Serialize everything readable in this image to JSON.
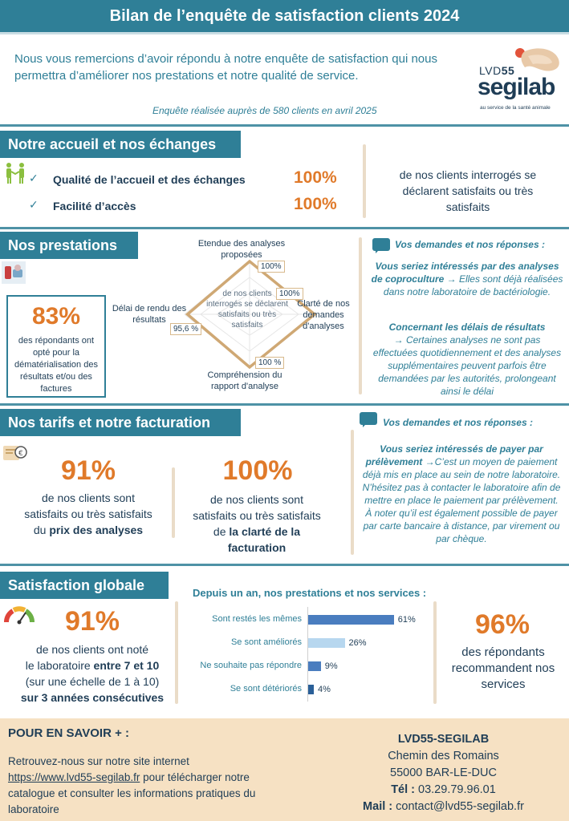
{
  "header": {
    "title": "Bilan de l’enquête de satisfaction clients 2024"
  },
  "intro": {
    "text": "Nous vous remercions d’avoir répondu à notre enquête de satisfaction qui nous permettra d’améliorer nos prestations et notre qualité de service.",
    "survey_note": "Enquête réalisée auprès de 580 clients en avril 2025"
  },
  "logo": {
    "lvd": "LVD",
    "lvd_num": "55",
    "name": "segilab",
    "tagline": "au service de la santé animale"
  },
  "colors": {
    "primary": "#2f7f97",
    "accent": "#e07a2a",
    "navy": "#1f3d56",
    "footer": "#f6e1c3"
  },
  "section1": {
    "title": "Notre accueil et nos échanges",
    "icon": "handshake-icon",
    "items": [
      {
        "label": "Qualité de l’accueil et des échanges",
        "value": "100%"
      },
      {
        "label": "Facilité d’accès",
        "value": "100%"
      }
    ],
    "note": "de nos clients interrogés se déclarent satisfaits ou très satisfaits"
  },
  "section2": {
    "title": "Nos prestations",
    "icon": "lab-sample-icon",
    "dematerialisation": {
      "value": "83%",
      "text": "des répondants ont opté pour la dématérialisation des résultats et/ou des factures"
    },
    "radar": {
      "center_text": "de nos clients interrogés se déclarent satisfaits ou très satisfaits",
      "axes": [
        {
          "label": "Etendue des analyses proposées",
          "value": "100%",
          "score": 100
        },
        {
          "label": "Clarté de nos demandes d'analyses",
          "value": "100%",
          "score": 100
        },
        {
          "label": "Compréhension du rapport d'analyse",
          "value": "100 %",
          "score": 100
        },
        {
          "label": "Délai de rendu des résultats",
          "value": "95,6 %",
          "score": 95.6
        }
      ]
    },
    "qa": {
      "heading": "Vos demandes et nos réponses :",
      "q1_bold": "Vous seriez intéressés par des analyses de coproculture",
      "q1_rest": " → Elles sont déjà réalisées dans notre laboratoire de bactériologie.",
      "q2_bold": "Concernant les délais de résultats",
      "q2_rest": "→ Certaines analyses ne sont pas effectuées quotidiennement et des analyses supplémentaires peuvent parfois être demandées par les autorités, prolongeant ainsi le délai"
    }
  },
  "section3": {
    "title": "Nos tarifs et notre facturation",
    "icon": "invoice-euro-icon",
    "price": {
      "value": "91%",
      "text": "de nos clients sont satisfaits ou très satisfaits du ",
      "bold": "prix des analyses"
    },
    "billing": {
      "value": "100%",
      "text": "de nos clients sont satisfaits ou très satisfaits de ",
      "bold": "la clarté de la facturation"
    },
    "qa": {
      "heading": "Vos demandes et nos réponses :",
      "q_bold": "Vous seriez intéressés de payer par prélèvement",
      "q_rest": " →C’est un moyen de paiement déjà mis en place au sein de notre laboratoire. N’hésitez pas à contacter le laboratoire afin de mettre en place le paiement par prélèvement.",
      "note": "À noter qu’il est également possible de payer par carte bancaire à distance, par virement ou par chèque."
    }
  },
  "section4": {
    "title": "Satisfaction globale",
    "icon": "gauge-icon",
    "score": {
      "value": "91%",
      "line1": "de nos clients ont noté",
      "line2_pre": "le laboratoire ",
      "line2_bold": "entre 7 et 10",
      "line3": "(sur une échelle de 1 à 10)",
      "line4": "sur 3 années consécutives"
    },
    "recommend": {
      "value": "96%",
      "text": "des répondants recommandent nos services"
    }
  },
  "chart_data": {
    "type": "bar",
    "orientation": "horizontal",
    "title": "Depuis un an, nos prestations et nos services :",
    "categories": [
      "Sont restés les mêmes",
      "Se sont améliorés",
      "Ne souhaite pas répondre",
      "Se sont détériorés"
    ],
    "values": [
      61,
      26,
      9,
      4
    ],
    "value_labels": [
      "61%",
      "26%",
      "9%",
      "4%"
    ],
    "colors": [
      "#4a7dbf",
      "#b7d7ef",
      "#4a7dbf",
      "#2a5f98"
    ],
    "xlim": [
      0,
      100
    ]
  },
  "footer": {
    "left_title": "POUR EN SAVOIR + :",
    "left_text_pre": "Retrouvez-nous sur notre site internet ",
    "link": "https://www.lvd55-segilab.fr",
    "left_text_post": " pour télécharger notre catalogue et consulter les informations pratiques du laboratoire",
    "org": "LVD55-SEGILAB",
    "street": "Chemin des Romains",
    "city": "55000 BAR-LE-DUC",
    "tel_label": "Tél :",
    "tel": " 03.29.79.96.01",
    "mail_label": "Mail :",
    "mail": " contact@lvd55-segilab.fr"
  }
}
